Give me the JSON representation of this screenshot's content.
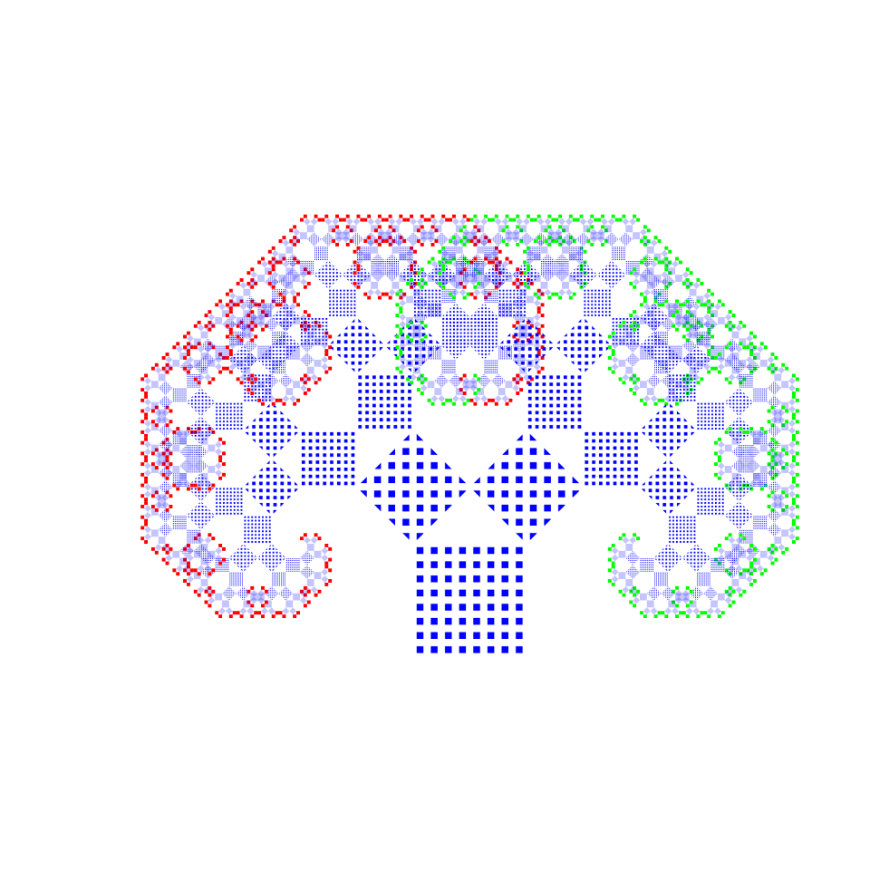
{
  "figure": {
    "type": "pythagoras-tree",
    "depth": 10,
    "branch_angle_deg": 45,
    "colors": {
      "background": "#ffffff",
      "trunk": "#0000ff",
      "left_leaf": "#ff0000",
      "right_leaf": "#00ff00"
    }
  }
}
